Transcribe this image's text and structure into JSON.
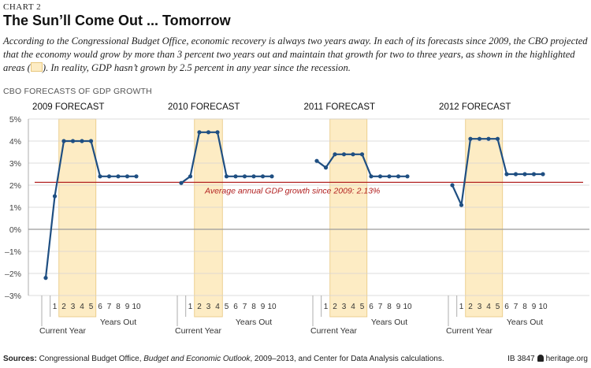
{
  "header": {
    "chart_label": "CHART 2",
    "title": "The Sun’ll Come Out ... Tomorrow",
    "subtitle_before": "According to the Congressional Budget Office, economic recovery is always two years away. In each of its forecasts since 2009, the CBO projected that the economy would grow by more than 3 percent two years out and maintain that growth for two to three years, as shown in the highlighted areas (",
    "subtitle_after": "). In reality, GDP hasn’t grown by 2.5 percent in any year since the recession.",
    "section_label": "CBO FORECASTS OF GDP GROWTH"
  },
  "colors": {
    "line": "#1f4f82",
    "highlight": "#fdecc4",
    "highlight_border": "#e8c77d",
    "average_line": "#b22222",
    "gridline": "#d3d3d3",
    "zero_line": "#9a9a9a"
  },
  "chart_data": {
    "type": "line",
    "ylabel_ticks": [
      "5%",
      "4%",
      "3%",
      "2%",
      "1%",
      "0%",
      "–1%",
      "–2%",
      "–3%"
    ],
    "ylim": [
      -3,
      5
    ],
    "y_tick_values": [
      5,
      4,
      3,
      2,
      1,
      0,
      -1,
      -2,
      -3
    ],
    "grid": true,
    "x_categories": [
      "",
      "1",
      "2",
      "3",
      "4",
      "5",
      "6",
      "7",
      "8",
      "9",
      "10"
    ],
    "x_label_current": "Current Year",
    "x_label_years": "Years Out",
    "average": {
      "value": 2.13,
      "label": "Average annual GDP growth since 2009: 2.13%"
    },
    "panels": [
      {
        "title": "2009 FORECAST",
        "values": [
          -2.2,
          1.5,
          4.0,
          4.0,
          4.0,
          4.0,
          2.4,
          2.4,
          2.4,
          2.4,
          2.4
        ],
        "highlight": [
          2,
          5
        ]
      },
      {
        "title": "2010 FORECAST",
        "values": [
          2.1,
          2.4,
          4.4,
          4.4,
          4.4,
          2.4,
          2.4,
          2.4,
          2.4,
          2.4,
          2.4
        ],
        "highlight": [
          2,
          4
        ]
      },
      {
        "title": "2011 FORECAST",
        "values": [
          3.1,
          2.8,
          3.4,
          3.4,
          3.4,
          3.4,
          2.4,
          2.4,
          2.4,
          2.4,
          2.4
        ],
        "highlight": [
          2,
          5
        ]
      },
      {
        "title": "2012 FORECAST",
        "values": [
          2.0,
          1.1,
          4.1,
          4.1,
          4.1,
          4.1,
          2.5,
          2.5,
          2.5,
          2.5,
          2.5
        ],
        "highlight": [
          2,
          5
        ]
      }
    ]
  },
  "footer": {
    "sources_label": "Sources:",
    "sources_text_1": " Congressional Budget Office, ",
    "sources_italic": "Budget and Economic Outlook",
    "sources_text_2": ", 2009–2013, and Center for Data Analysis calculations.",
    "ib_number": "IB 3847",
    "site": "heritage.org"
  }
}
